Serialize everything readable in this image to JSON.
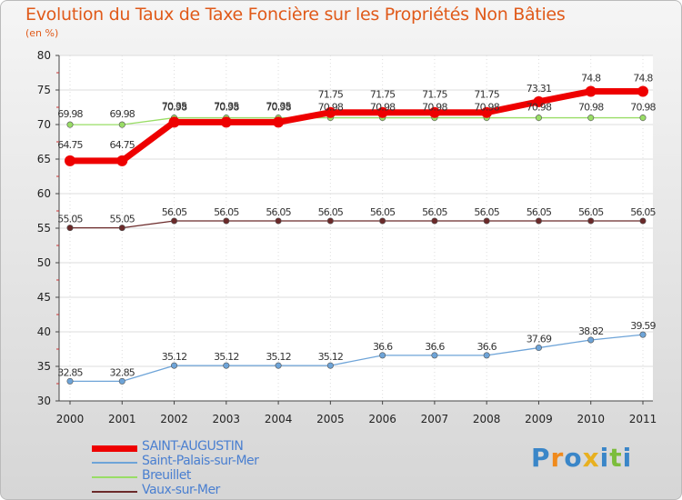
{
  "chart_data": {
    "type": "line",
    "title": "Evolution du Taux de Taxe Foncière sur les Propriétés Non Bâties",
    "ylabel": "(en %)",
    "xlabel": "",
    "ylim": [
      30,
      80
    ],
    "yticks": [
      30,
      35,
      40,
      45,
      50,
      55,
      60,
      65,
      70,
      75,
      80
    ],
    "categories": [
      "2000",
      "2001",
      "2002",
      "2003",
      "2004",
      "2005",
      "2006",
      "2007",
      "2008",
      "2009",
      "2010",
      "2011"
    ],
    "series": [
      {
        "name": "SAINT-AUGUSTIN",
        "color": "#ee0000",
        "values": [
          64.75,
          64.75,
          70.35,
          70.35,
          70.35,
          71.75,
          71.75,
          71.75,
          71.75,
          73.31,
          74.8,
          74.8
        ],
        "labels": [
          "64.75",
          "64.75",
          "70.35",
          "70.35",
          "70.35",
          "71.75",
          "71.75",
          "71.75",
          "71.75",
          "73.31",
          "74.8",
          "74.8"
        ]
      },
      {
        "name": "Saint-Palais-sur-Mer",
        "color": "#6ea4d8",
        "values": [
          32.85,
          32.85,
          35.12,
          35.12,
          35.12,
          35.12,
          36.6,
          36.6,
          36.6,
          37.69,
          38.82,
          39.59
        ],
        "labels": [
          "32.85",
          "32.85",
          "35.12",
          "35.12",
          "35.12",
          "35.12",
          "36.6",
          "36.6",
          "36.6",
          "37.69",
          "38.82",
          "39.59"
        ]
      },
      {
        "name": "Breuillet",
        "color": "#99dd66",
        "values": [
          69.98,
          69.98,
          70.98,
          70.98,
          70.98,
          70.98,
          70.98,
          70.98,
          70.98,
          70.98,
          70.98,
          70.98
        ],
        "labels": [
          "69.98",
          "69.98",
          "70.98",
          "70.98",
          "70.98",
          "70.98",
          "70.98",
          "70.98",
          "70.98",
          "70.98",
          "70.98",
          "70.98"
        ]
      },
      {
        "name": "Vaux-sur-Mer",
        "color": "#6b2a2a",
        "values": [
          55.05,
          55.05,
          56.05,
          56.05,
          56.05,
          56.05,
          56.05,
          56.05,
          56.05,
          56.05,
          56.05,
          56.05
        ],
        "labels": [
          "55.05",
          "55.05",
          "56.05",
          "56.05",
          "56.05",
          "56.05",
          "56.05",
          "56.05",
          "56.05",
          "56.05",
          "56.05",
          "56.05"
        ]
      }
    ]
  },
  "logo": {
    "text": "Proxiti",
    "letters": [
      "P",
      "r",
      "o",
      "x",
      "i",
      "t",
      "i"
    ],
    "colors": [
      "#3a86c8",
      "#f08a1c",
      "#3a86c8",
      "#e8b020",
      "#3a86c8",
      "#7cbd3c",
      "#3a86c8"
    ]
  }
}
